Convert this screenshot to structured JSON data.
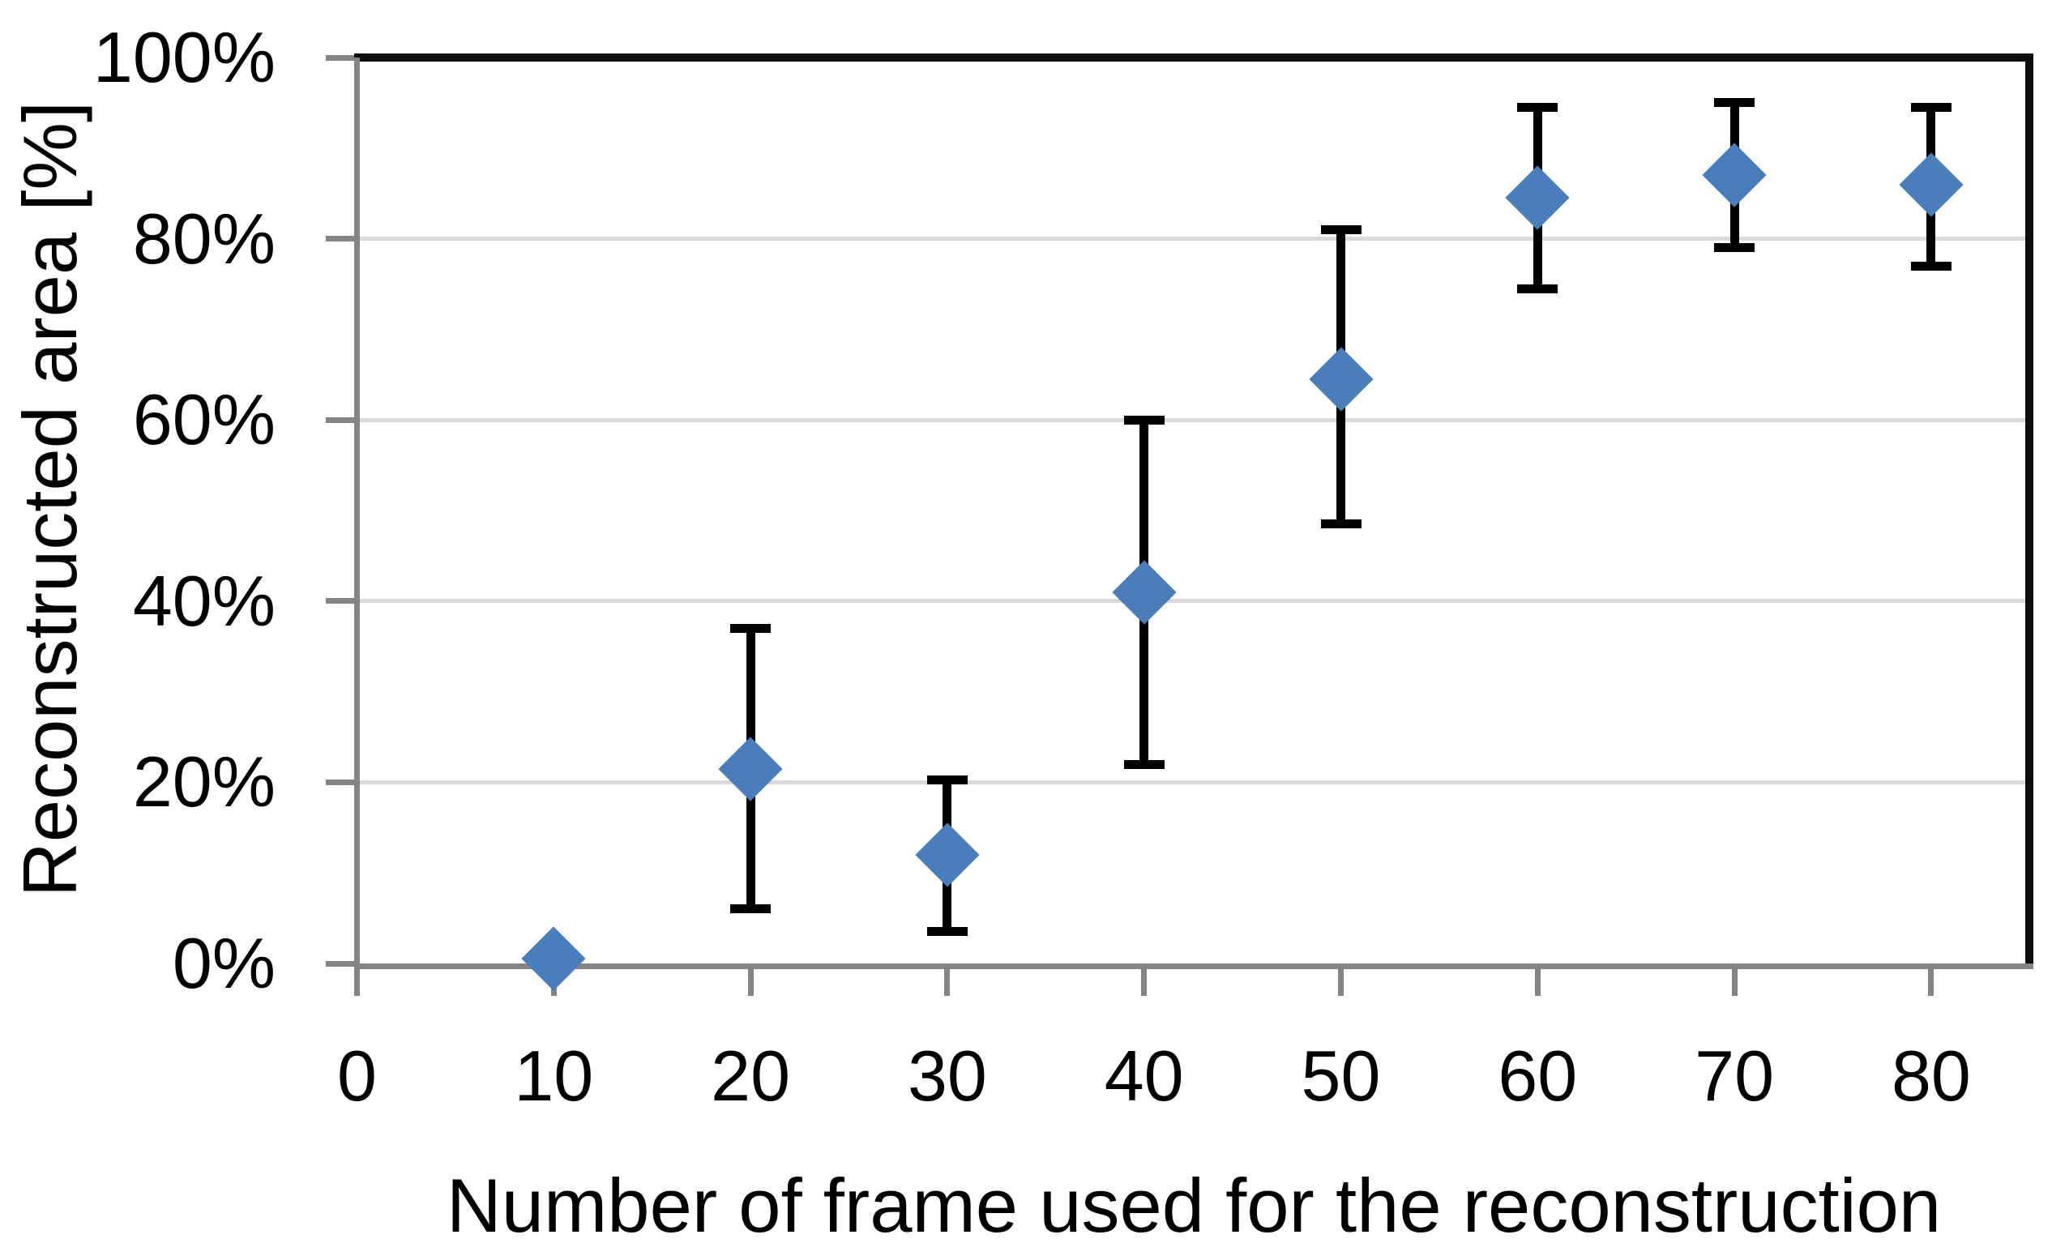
{
  "chart_data": {
    "type": "scatter",
    "title": "",
    "xlabel": "Number of frame used for the reconstruction",
    "ylabel": "Reconstructed area [%]",
    "x_ticks": [
      0,
      10,
      20,
      30,
      40,
      50,
      60,
      70,
      80
    ],
    "y_ticks": [
      0,
      20,
      40,
      60,
      80,
      100
    ],
    "y_tick_suffix": "%",
    "xlim": [
      0,
      85
    ],
    "ylim": [
      0,
      100
    ],
    "grid": "horizontal",
    "legend_position": "none",
    "series": [
      {
        "name": "Reconstructed area",
        "marker": "diamond",
        "points": [
          {
            "x": 10,
            "y": 0.5,
            "y_err_low": null,
            "y_err_high": null
          },
          {
            "x": 20,
            "y": 21.5,
            "y_err_low": 6.0,
            "y_err_high": 37.0
          },
          {
            "x": 30,
            "y": 12.0,
            "y_err_low": 3.5,
            "y_err_high": 20.3
          },
          {
            "x": 40,
            "y": 41.0,
            "y_err_low": 22.0,
            "y_err_high": 60.0
          },
          {
            "x": 50,
            "y": 64.5,
            "y_err_low": 48.5,
            "y_err_high": 81.0
          },
          {
            "x": 60,
            "y": 84.5,
            "y_err_low": 74.5,
            "y_err_high": 94.5
          },
          {
            "x": 70,
            "y": 87.0,
            "y_err_low": 79.0,
            "y_err_high": 95.0
          },
          {
            "x": 80,
            "y": 86.0,
            "y_err_low": 77.0,
            "y_err_high": 94.5
          }
        ]
      }
    ],
    "colors": {
      "marker": "#4A7EBA",
      "error_bar": "#000000",
      "gridline": "#D9D9D9",
      "axis": "#848484",
      "plot_border": "#0D0D0D",
      "text": "#000000",
      "background": "#FFFFFF"
    }
  }
}
